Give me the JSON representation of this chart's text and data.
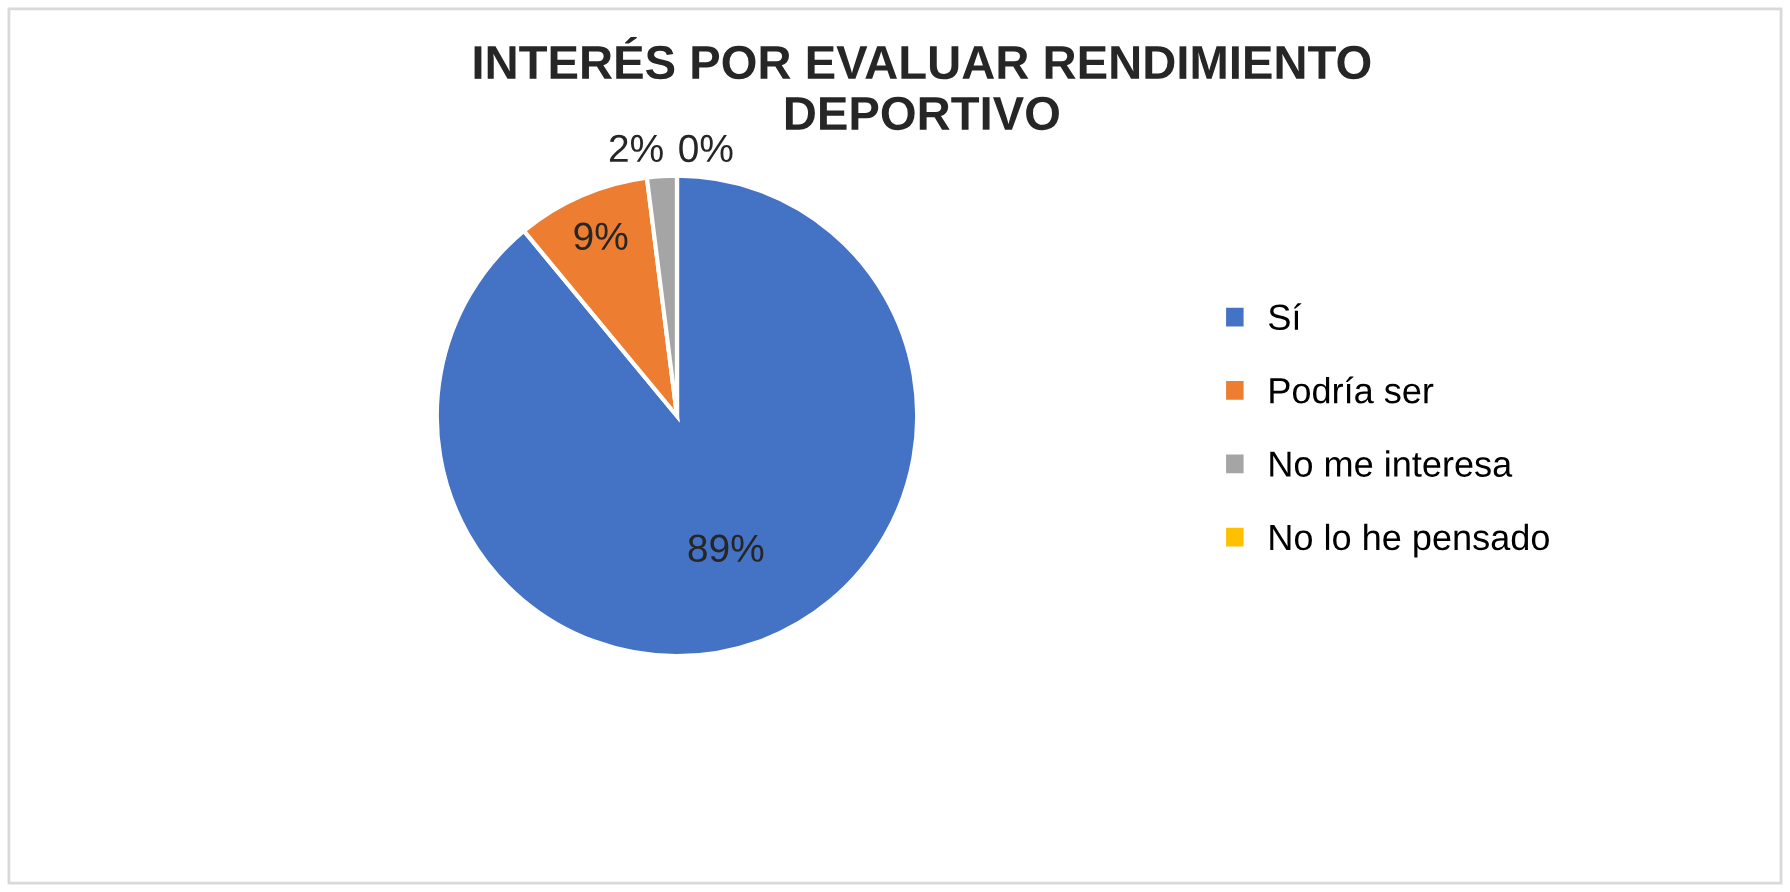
{
  "chart_data": {
    "type": "pie",
    "title": "INTERÉS POR EVALUAR RENDIMIENTO\nDEPORTIVO",
    "categories": [
      "Sí",
      "Podría ser",
      "No me interesa",
      "No lo he pensado"
    ],
    "values": [
      89,
      9,
      2,
      0
    ],
    "colors": [
      "#4472c4",
      "#ed7d31",
      "#a5a5a5",
      "#ffc000"
    ],
    "value_labels": [
      "89%",
      "9%",
      "2%",
      "0%"
    ],
    "legend": "right"
  }
}
